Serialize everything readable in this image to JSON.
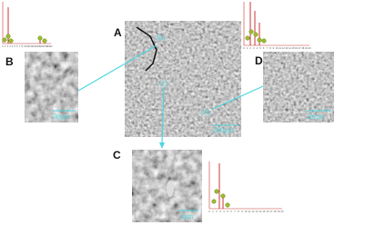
{
  "panels": {
    "a": "A",
    "b": "B",
    "c": "C",
    "d": "D"
  },
  "markers": {
    "b": "(b)",
    "c": "(c)",
    "d": "(d)"
  },
  "scale_bars": {
    "a": "200μm",
    "b": "30μm",
    "c": "3μm",
    "d": "20μm"
  },
  "spectra": {
    "top_left": {
      "x_ticks": [
        "0",
        "1",
        "2",
        "3",
        "4",
        "5",
        "6",
        "7",
        "8",
        "9",
        "10",
        "11",
        "12",
        "13",
        "14",
        "15",
        "16",
        "17",
        "18",
        "19",
        "20"
      ]
    },
    "top_right": {
      "x_ticks": [
        "0",
        "1",
        "2",
        "3",
        "4",
        "5",
        "6",
        "7",
        "8",
        "9",
        "10",
        "11",
        "12",
        "13",
        "14",
        "15",
        "16",
        "17",
        "18",
        "19",
        "20"
      ]
    },
    "bottom": {
      "x_ticks": [
        "0",
        "1",
        "2",
        "3",
        "4",
        "5",
        "6",
        "7",
        "8",
        "9",
        "10",
        "11",
        "12",
        "13",
        "14",
        "15",
        "16",
        "17",
        "18",
        "19",
        "20"
      ]
    }
  }
}
